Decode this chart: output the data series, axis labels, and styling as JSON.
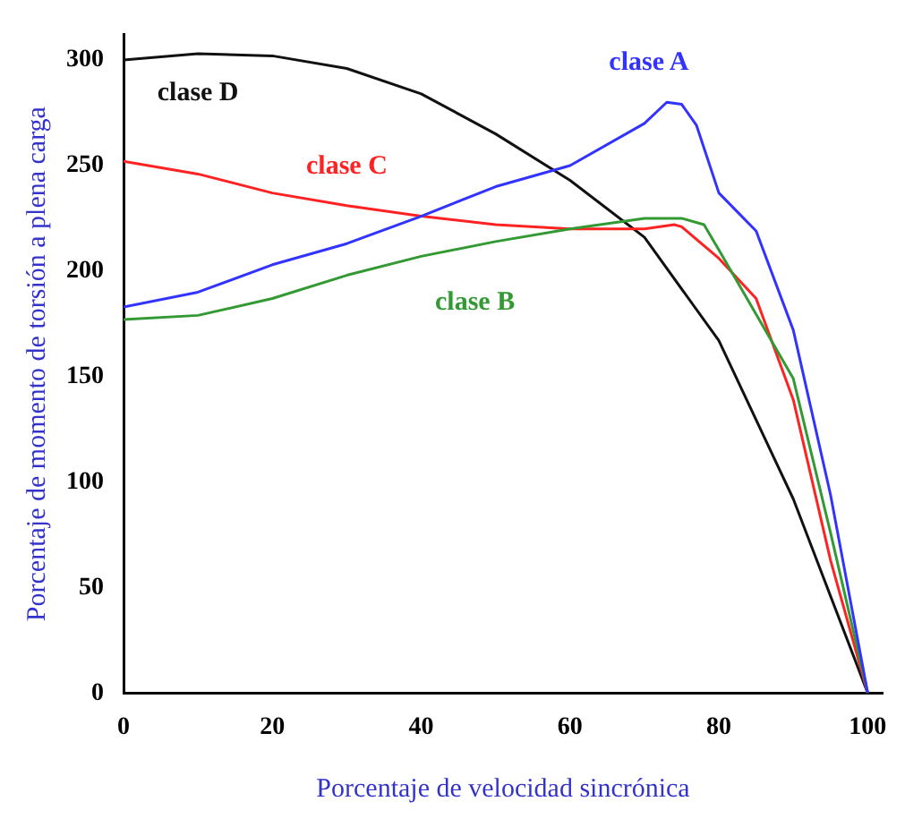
{
  "chart_data": {
    "type": "line",
    "xlabel": "Porcentaje de velocidad sincrónica",
    "ylabel": "Porcentaje de momento de torsión a plena carga",
    "xlim": [
      0,
      102
    ],
    "xticks": [
      0,
      20,
      40,
      60,
      80,
      100
    ],
    "ylim": [
      0,
      312
    ],
    "yticks": [
      0,
      50,
      100,
      150,
      200,
      250,
      300
    ],
    "grid": false,
    "legend": false,
    "marker": "none",
    "line_style": "solid",
    "series": [
      {
        "name": "clase A",
        "color": "#3333ff",
        "x": [
          0,
          10,
          20,
          30,
          40,
          50,
          60,
          70,
          73,
          75,
          77,
          80,
          85,
          90,
          95,
          100
        ],
        "values": [
          183,
          190,
          203,
          213,
          226,
          240,
          250,
          270,
          280,
          279,
          269,
          237,
          219,
          172,
          94,
          0
        ]
      },
      {
        "name": "clase B",
        "color": "#339933",
        "x": [
          0,
          10,
          20,
          30,
          40,
          50,
          60,
          70,
          73,
          75,
          78,
          80,
          90,
          95,
          100
        ],
        "values": [
          177,
          179,
          187,
          198,
          207,
          214,
          220,
          225,
          225,
          225,
          222,
          210,
          149,
          76,
          0
        ]
      },
      {
        "name": "clase C",
        "color": "#ff2222",
        "x": [
          0,
          10,
          20,
          30,
          40,
          50,
          60,
          70,
          74,
          75,
          80,
          85,
          90,
          95,
          100
        ],
        "values": [
          252,
          246,
          237,
          231,
          226,
          222,
          220,
          220,
          222,
          221,
          206,
          187,
          139,
          63,
          0
        ]
      },
      {
        "name": "clase D",
        "color": "#111111",
        "x": [
          0,
          10,
          20,
          30,
          40,
          50,
          60,
          70,
          80,
          90,
          100
        ],
        "values": [
          300,
          303,
          302,
          296,
          284,
          265,
          243,
          216,
          167,
          92,
          0
        ]
      }
    ]
  }
}
